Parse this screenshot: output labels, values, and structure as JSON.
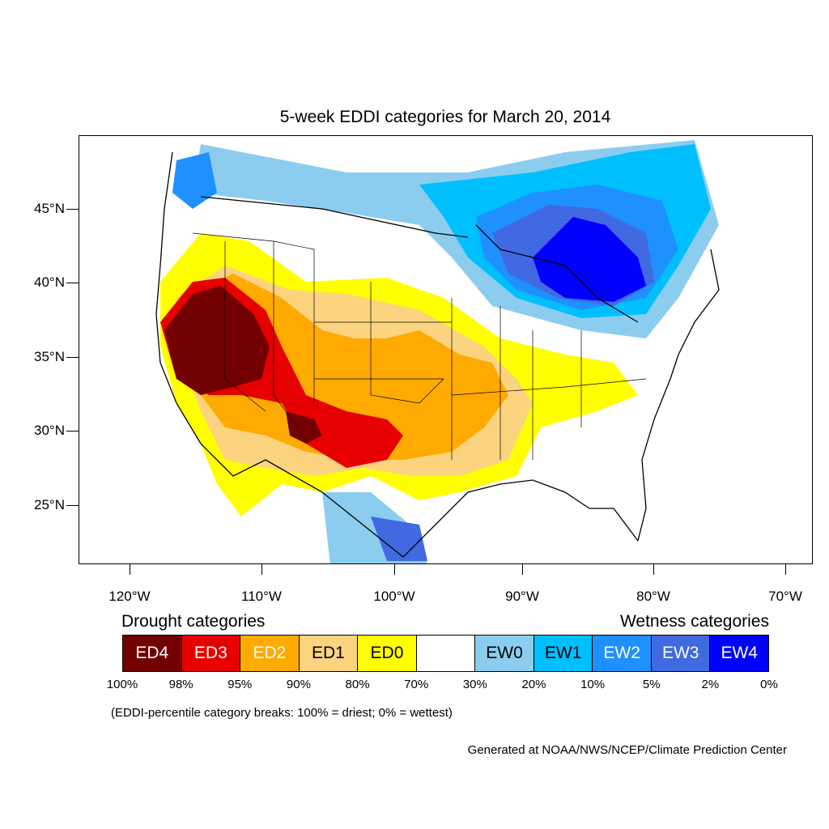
{
  "title": "5-week EDDI categories for March 20, 2014",
  "map": {
    "lat_labels": [
      "45°N",
      "40°N",
      "35°N",
      "30°N",
      "25°N"
    ],
    "lon_labels": [
      "120°W",
      "110°W",
      "100°W",
      "90°W",
      "80°W",
      "70°W"
    ]
  },
  "legend": {
    "drought_heading": "Drought categories",
    "wetness_heading": "Wetness categories",
    "categories": [
      {
        "label": "ED4",
        "color": "#730000",
        "text_color": "#ffffff"
      },
      {
        "label": "ED3",
        "color": "#e60000",
        "text_color": "#ffffff"
      },
      {
        "label": "ED2",
        "color": "#ffaa00",
        "text_color": "#ffffff"
      },
      {
        "label": "ED1",
        "color": "#fcd37f",
        "text_color": "#000000"
      },
      {
        "label": "ED0",
        "color": "#ffff00",
        "text_color": "#000000"
      },
      {
        "label": "",
        "color": "#ffffff",
        "text_color": "#000000"
      },
      {
        "label": "EW0",
        "color": "#8ccdef",
        "text_color": "#000000"
      },
      {
        "label": "EW1",
        "color": "#00bfff",
        "text_color": "#000000"
      },
      {
        "label": "EW2",
        "color": "#1e90ff",
        "text_color": "#ffffff"
      },
      {
        "label": "EW3",
        "color": "#4169e1",
        "text_color": "#ffffff"
      },
      {
        "label": "EW4",
        "color": "#0000ff",
        "text_color": "#ffffff"
      }
    ],
    "breaks": [
      "100%",
      "98%",
      "95%",
      "90%",
      "80%",
      "70%",
      "30%",
      "20%",
      "10%",
      "5%",
      "2%",
      "0%"
    ]
  },
  "note": "(EDDI-percentile category breaks: 100% = driest; 0% = wettest)",
  "credit": "Generated at NOAA/NWS/NCEP/Climate Prediction Center"
}
